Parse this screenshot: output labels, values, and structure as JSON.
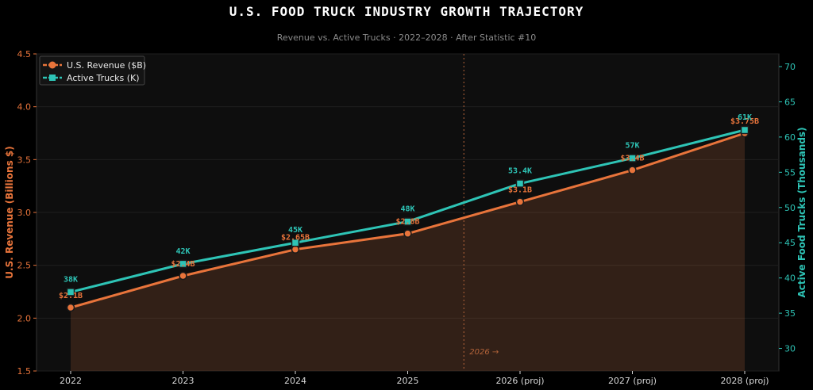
{
  "title": "U.S. FOOD TRUCK INDUSTRY GROWTH TRAJECTORY",
  "subtitle": "Revenue vs. Active Trucks  ·  2022–2028  ·  After Statistic #10",
  "chart_data": {
    "type": "line",
    "categories": [
      "2022",
      "2023",
      "2024",
      "2025",
      "2026 (proj)",
      "2027 (proj)",
      "2028 (proj)"
    ],
    "series": [
      {
        "name": "U.S. Revenue ($B)",
        "axis": "left",
        "color": "#e8743b",
        "marker": "circle",
        "values": [
          2.1,
          2.4,
          2.65,
          2.8,
          3.1,
          3.4,
          3.75
        ],
        "labels": [
          "$2.1B",
          "$2.4B",
          "$2.65B",
          "$2.8B",
          "$3.1B",
          "$3.4B",
          "$3.75B"
        ]
      },
      {
        "name": "Active Trucks (K)",
        "axis": "right",
        "color": "#2ec4b6",
        "marker": "square",
        "values": [
          38,
          42,
          45,
          48,
          53.4,
          57,
          61
        ],
        "labels": [
          "38K",
          "42K",
          "45K",
          "48K",
          "53.4K",
          "57K",
          "61K"
        ]
      }
    ],
    "ylabel_left": "U.S. Revenue (Billions $)",
    "ylabel_right": "Active Food Trucks (Thousands)",
    "ylim_left": [
      1.5,
      4.5
    ],
    "yticks_left": [
      1.5,
      2.0,
      2.5,
      3.0,
      3.5,
      4.0,
      4.5
    ],
    "ylim_right": [
      26.8,
      71.8
    ],
    "yticks_right": [
      30,
      35,
      40,
      45,
      50,
      55,
      60,
      65,
      70
    ],
    "annotation": {
      "text": "2026 →",
      "x_between": [
        "2025",
        "2026 (proj)"
      ]
    },
    "legend_position": "top-left",
    "grid": true
  }
}
